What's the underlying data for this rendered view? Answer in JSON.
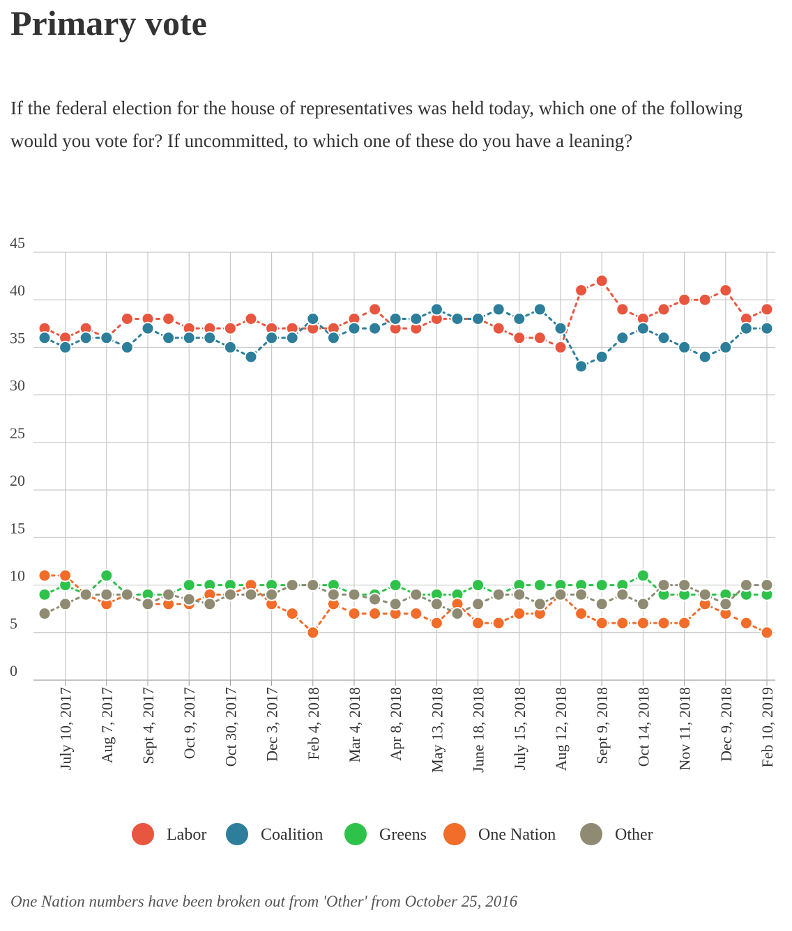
{
  "title": "Primary vote",
  "subtitle": "If the federal election for the house of representatives was held today, which one of the following would you vote for? If uncommitted, to which one of these do you have a leaning?",
  "footnote": "One Nation numbers have been broken out from 'Other' from October 25, 2016",
  "chart_data": {
    "type": "line",
    "title": "Primary vote",
    "xlabel": "",
    "ylabel": "",
    "ylim": [
      0,
      45
    ],
    "y_ticks": [
      0,
      5,
      10,
      15,
      20,
      25,
      30,
      35,
      40,
      45
    ],
    "grid": true,
    "legend_position": "bottom",
    "point_count": 36,
    "x_tick_labels": [
      {
        "index": 1,
        "label": "July 10, 2017"
      },
      {
        "index": 3,
        "label": "Aug 7, 2017"
      },
      {
        "index": 5,
        "label": "Sept 4, 2017"
      },
      {
        "index": 7,
        "label": "Oct 9, 2017"
      },
      {
        "index": 9,
        "label": "Oct 30, 2017"
      },
      {
        "index": 11,
        "label": "Dec 3, 2017"
      },
      {
        "index": 13,
        "label": "Feb 4, 2018"
      },
      {
        "index": 15,
        "label": "Mar 4, 2018"
      },
      {
        "index": 17,
        "label": "Apr 8, 2018"
      },
      {
        "index": 19,
        "label": "May 13, 2018"
      },
      {
        "index": 21,
        "label": "June 18, 2018"
      },
      {
        "index": 23,
        "label": "July 15, 2018"
      },
      {
        "index": 25,
        "label": "Aug 12, 2018"
      },
      {
        "index": 27,
        "label": "Sept 9, 2018"
      },
      {
        "index": 29,
        "label": "Oct 14, 2018"
      },
      {
        "index": 31,
        "label": "Nov 11, 2018"
      },
      {
        "index": 33,
        "label": "Dec 9, 2018"
      },
      {
        "index": 35,
        "label": "Feb 10, 2019"
      }
    ],
    "series": [
      {
        "name": "Labor",
        "color": "#e8563f",
        "values": [
          37,
          36,
          37,
          36,
          38,
          38,
          38,
          37,
          37,
          37,
          38,
          37,
          37,
          37,
          37,
          38,
          39,
          37,
          37,
          38,
          38,
          38,
          37,
          36,
          36,
          35,
          41,
          42,
          39,
          38,
          39,
          40,
          40,
          41,
          38,
          39
        ]
      },
      {
        "name": "Coalition",
        "color": "#2c7e9b",
        "values": [
          36,
          35,
          36,
          36,
          35,
          37,
          36,
          36,
          36,
          35,
          34,
          36,
          36,
          38,
          36,
          37,
          37,
          38,
          38,
          39,
          38,
          38,
          39,
          38,
          39,
          37,
          33,
          34,
          36,
          37,
          36,
          35,
          34,
          35,
          37,
          37
        ]
      },
      {
        "name": "Greens",
        "color": "#2ec24a",
        "values": [
          9,
          10,
          9,
          11,
          9,
          9,
          9,
          10,
          10,
          10,
          10,
          10,
          10,
          10,
          10,
          9,
          9,
          10,
          9,
          9,
          9,
          10,
          9,
          10,
          10,
          10,
          10,
          10,
          10,
          11,
          9,
          9,
          9,
          9,
          9,
          9
        ]
      },
      {
        "name": "One Nation",
        "color": "#f26c2a",
        "values": [
          11,
          11,
          9,
          8,
          9,
          8,
          8,
          8,
          9,
          9,
          10,
          8,
          7,
          5,
          8,
          7,
          7,
          7,
          7,
          6,
          8,
          6,
          6,
          7,
          7,
          9,
          7,
          6,
          6,
          6,
          6,
          6,
          8,
          7,
          6,
          5
        ]
      },
      {
        "name": "Other",
        "color": "#8f8b73",
        "values": [
          7,
          8,
          9,
          9,
          9,
          8,
          9,
          8.5,
          8,
          9,
          9,
          9,
          10,
          10,
          9,
          9,
          8.5,
          8,
          9,
          8,
          7,
          8,
          9,
          9,
          8,
          9,
          9,
          8,
          9,
          8,
          10,
          10,
          9,
          8,
          10,
          10
        ]
      }
    ]
  }
}
